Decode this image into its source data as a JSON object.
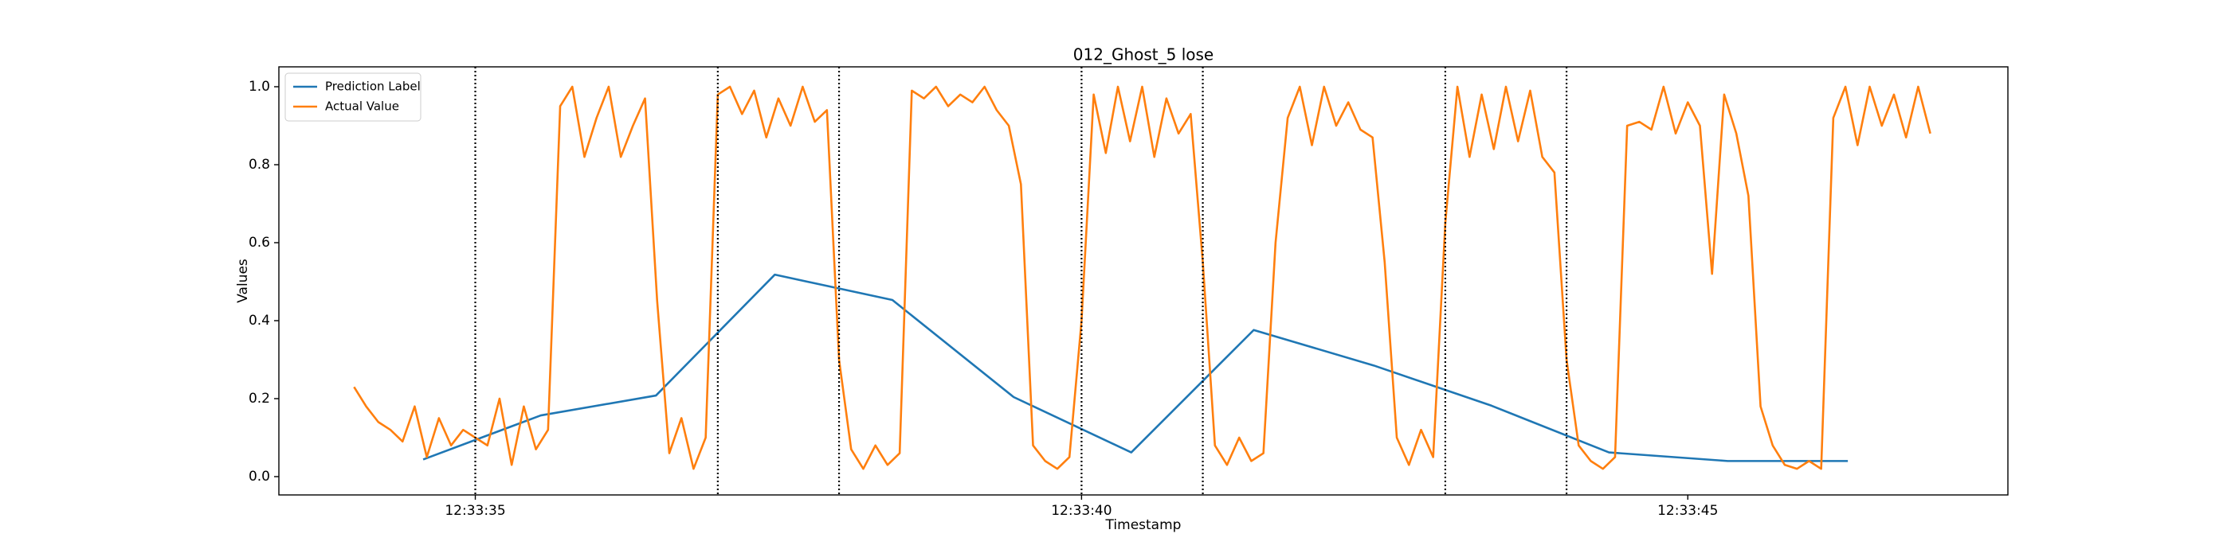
{
  "chart_data": {
    "type": "line",
    "title": "012_Ghost_5 lose",
    "xlabel": "Timestamp",
    "ylabel": "Values",
    "xlim": [
      33.38,
      47.64
    ],
    "ylim": [
      -0.047,
      1.051
    ],
    "xticks": [
      {
        "value": 35,
        "label": "12:33:35"
      },
      {
        "value": 40,
        "label": "12:33:40"
      },
      {
        "value": 45,
        "label": "12:33:45"
      }
    ],
    "yticks": [
      {
        "value": 0,
        "label": "0.0"
      },
      {
        "value": 0.2,
        "label": "0.2"
      },
      {
        "value": 0.4,
        "label": "0.4"
      },
      {
        "value": 0.6,
        "label": "0.6"
      },
      {
        "value": 0.8,
        "label": "0.8"
      },
      {
        "value": 1,
        "label": "1.0"
      }
    ],
    "vlines": [
      35,
      37,
      38,
      40,
      41,
      43,
      44
    ],
    "legend": "upper left",
    "series": [
      {
        "name": "Prediction Label",
        "color": "#1f77b4",
        "x": [
          34.57,
          35.54,
          36.49,
          37.47,
          38.44,
          39.44,
          40.41,
          41.42,
          42.41,
          43.38,
          44.35,
          45.33,
          46.32
        ],
        "values": [
          0.044,
          0.157,
          0.208,
          0.518,
          0.453,
          0.204,
          0.062,
          0.376,
          0.285,
          0.182,
          0.062,
          0.04,
          0.04
        ]
      },
      {
        "name": "Actual Value",
        "color": "#ff7f0e",
        "x": [
          34.0,
          34.1,
          34.2,
          34.3,
          34.4,
          34.5,
          34.6,
          34.7,
          34.8,
          34.9,
          35.0,
          35.1,
          35.2,
          35.3,
          35.4,
          35.5,
          35.6,
          35.7,
          35.8,
          35.9,
          36.0,
          36.1,
          36.2,
          36.3,
          36.4,
          36.5,
          36.6,
          36.7,
          36.8,
          36.9,
          37.0,
          37.1,
          37.2,
          37.3,
          37.4,
          37.5,
          37.6,
          37.7,
          37.8,
          37.9,
          38.0,
          38.1,
          38.2,
          38.3,
          38.4,
          38.5,
          38.6,
          38.7,
          38.8,
          38.9,
          39.0,
          39.1,
          39.2,
          39.3,
          39.4,
          39.5,
          39.6,
          39.7,
          39.8,
          39.9,
          40.0,
          40.1,
          40.2,
          40.3,
          40.4,
          40.5,
          40.6,
          40.7,
          40.8,
          40.9,
          41.0,
          41.1,
          41.2,
          41.3,
          41.4,
          41.5,
          41.6,
          41.7,
          41.8,
          41.9,
          42.0,
          42.1,
          42.2,
          42.3,
          42.4,
          42.5,
          42.6,
          42.7,
          42.8,
          42.9,
          43.0,
          43.1,
          43.2,
          43.3,
          43.4,
          43.5,
          43.6,
          43.7,
          43.8,
          43.9,
          44.0,
          44.1,
          44.2,
          44.3,
          44.4,
          44.5,
          44.6,
          44.7,
          44.8,
          44.9,
          45.0,
          45.1,
          45.2,
          45.3,
          45.4,
          45.5,
          45.6,
          45.7,
          45.8,
          45.9,
          46.0,
          46.1,
          46.2,
          46.3,
          46.4,
          46.5,
          46.6,
          46.7,
          46.8,
          46.9,
          47.0
        ],
        "values": [
          0.23,
          0.18,
          0.14,
          0.12,
          0.09,
          0.18,
          0.05,
          0.15,
          0.08,
          0.12,
          0.1,
          0.08,
          0.2,
          0.03,
          0.18,
          0.07,
          0.12,
          0.95,
          1.0,
          0.82,
          0.92,
          1.0,
          0.82,
          0.9,
          0.97,
          0.45,
          0.06,
          0.15,
          0.02,
          0.1,
          0.98,
          1.0,
          0.93,
          0.99,
          0.87,
          0.97,
          0.9,
          1.0,
          0.91,
          0.94,
          0.3,
          0.07,
          0.02,
          0.08,
          0.03,
          0.06,
          0.99,
          0.97,
          1.0,
          0.95,
          0.98,
          0.96,
          1.0,
          0.94,
          0.9,
          0.75,
          0.08,
          0.04,
          0.02,
          0.05,
          0.4,
          0.98,
          0.83,
          1.0,
          0.86,
          1.0,
          0.82,
          0.97,
          0.88,
          0.93,
          0.55,
          0.08,
          0.03,
          0.1,
          0.04,
          0.06,
          0.6,
          0.92,
          1.0,
          0.85,
          1.0,
          0.9,
          0.96,
          0.89,
          0.87,
          0.55,
          0.1,
          0.03,
          0.12,
          0.05,
          0.65,
          1.0,
          0.82,
          0.98,
          0.84,
          1.0,
          0.86,
          0.99,
          0.82,
          0.78,
          0.3,
          0.08,
          0.04,
          0.02,
          0.05,
          0.9,
          0.91,
          0.89,
          1.0,
          0.88,
          0.96,
          0.9,
          0.52,
          0.98,
          0.88,
          0.72,
          0.18,
          0.08,
          0.03,
          0.02,
          0.04,
          0.02,
          0.92,
          1.0,
          0.85,
          1.0,
          0.9,
          0.98,
          0.87,
          1.0,
          0.88
        ]
      }
    ]
  }
}
